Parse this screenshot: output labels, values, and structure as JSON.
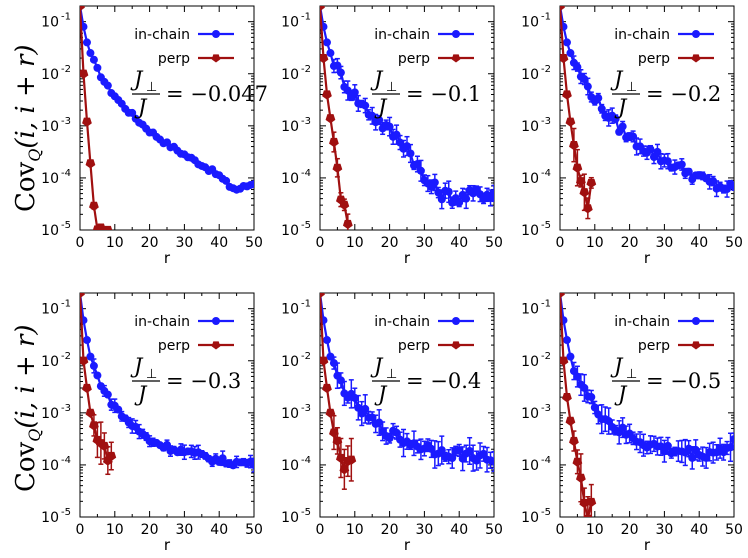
{
  "row_ylabel": "Cov",
  "row_ylabel_sub": "Q",
  "row_ylabel_args": "(i, i + r)",
  "chart_data": [
    {
      "panel": 1,
      "type": "line",
      "xlabel": "r",
      "yscale": "log",
      "xlim": [
        0,
        50
      ],
      "ylim": [
        1e-05,
        0.2
      ],
      "xticks": [
        "0",
        "10",
        "20",
        "30",
        "40",
        "50"
      ],
      "ytick_mantissa": [
        "10",
        "10",
        "10",
        "10",
        "10"
      ],
      "ytick_exponent": [
        "-1",
        "-2",
        "-3",
        "-4",
        "-5"
      ],
      "annotation": {
        "lhs_num": "J",
        "lhs_num_sub": "⊥",
        "lhs_den": "J",
        "rhs": "= −0.047",
        "ratio": -0.047
      },
      "series": [
        {
          "name": "in-chain",
          "color": "#1a1aff",
          "anchors": [
            [
              0,
              0.2
            ],
            [
              1,
              0.08
            ],
            [
              2,
              0.04
            ],
            [
              3,
              0.025
            ],
            [
              5,
              0.012
            ],
            [
              8,
              0.0055
            ],
            [
              12,
              0.0026
            ],
            [
              16,
              0.0014
            ],
            [
              20,
              0.0008
            ],
            [
              25,
              0.00045
            ],
            [
              30,
              0.00028
            ],
            [
              35,
              0.00018
            ],
            [
              40,
              0.00011
            ],
            [
              43,
              7e-05
            ],
            [
              45,
              6e-05
            ],
            [
              48,
              7e-05
            ],
            [
              50,
              8e-05
            ]
          ],
          "noise": 0.04,
          "err": 0.03
        },
        {
          "name": "perp",
          "color": "#a01010",
          "anchors": [
            [
              0,
              0.2
            ],
            [
              1,
              0.01
            ],
            [
              2,
              0.0012
            ],
            [
              3,
              0.00019
            ],
            [
              4,
              3e-05
            ],
            [
              5,
              1e-05
            ],
            [
              6,
              1.1e-05
            ],
            [
              7,
              9.5e-06
            ],
            [
              8,
              1e-05
            ]
          ],
          "noise": 0.02,
          "err": 0.06
        }
      ]
    },
    {
      "panel": 2,
      "type": "line",
      "xlabel": "r",
      "yscale": "log",
      "xlim": [
        0,
        50
      ],
      "ylim": [
        1e-05,
        0.2
      ],
      "xticks": [
        "0",
        "10",
        "20",
        "30",
        "40",
        "50"
      ],
      "ytick_mantissa": [
        "10",
        "10",
        "10",
        "10",
        "10"
      ],
      "ytick_exponent": [
        "-1",
        "-2",
        "-3",
        "-4",
        "-5"
      ],
      "annotation": {
        "lhs_num": "J",
        "lhs_num_sub": "⊥",
        "lhs_den": "J",
        "rhs": "= −0.1",
        "ratio": -0.1
      },
      "series": [
        {
          "name": "in-chain",
          "color": "#1a1aff",
          "anchors": [
            [
              0,
              0.2
            ],
            [
              1,
              0.08
            ],
            [
              2,
              0.04
            ],
            [
              3,
              0.025
            ],
            [
              5,
              0.012
            ],
            [
              8,
              0.0055
            ],
            [
              12,
              0.0026
            ],
            [
              16,
              0.0014
            ],
            [
              20,
              0.0008
            ],
            [
              25,
              0.0004
            ],
            [
              28,
              0.00017
            ],
            [
              30,
              9e-05
            ],
            [
              35,
              5e-05
            ],
            [
              40,
              4e-05
            ],
            [
              45,
              5e-05
            ],
            [
              50,
              5e-05
            ]
          ],
          "noise": 0.12,
          "err": 0.15
        },
        {
          "name": "perp",
          "color": "#a01010",
          "anchors": [
            [
              0,
              0.2
            ],
            [
              1,
              0.02
            ],
            [
              2,
              0.004
            ],
            [
              3,
              0.0014
            ],
            [
              4,
              0.0005
            ],
            [
              5,
              0.00015
            ],
            [
              6,
              4e-05
            ],
            [
              7,
              3e-05
            ],
            [
              8,
              1.2e-05
            ]
          ],
          "noise": 0.05,
          "err": 0.2
        }
      ]
    },
    {
      "panel": 3,
      "type": "line",
      "xlabel": "r",
      "yscale": "log",
      "xlim": [
        0,
        50
      ],
      "ylim": [
        1e-05,
        0.2
      ],
      "xticks": [
        "0",
        "10",
        "20",
        "30",
        "40",
        "50"
      ],
      "ytick_mantissa": [
        "10",
        "10",
        "10",
        "10",
        "10"
      ],
      "ytick_exponent": [
        "-1",
        "-2",
        "-3",
        "-4",
        "-5"
      ],
      "annotation": {
        "lhs_num": "J",
        "lhs_num_sub": "⊥",
        "lhs_den": "J",
        "rhs": "= −0.2",
        "ratio": -0.2
      },
      "series": [
        {
          "name": "in-chain",
          "color": "#1a1aff",
          "anchors": [
            [
              0,
              0.2
            ],
            [
              1,
              0.08
            ],
            [
              2,
              0.04
            ],
            [
              3,
              0.025
            ],
            [
              5,
              0.012
            ],
            [
              8,
              0.0055
            ],
            [
              12,
              0.0022
            ],
            [
              16,
              0.0011
            ],
            [
              20,
              0.0006
            ],
            [
              25,
              0.00035
            ],
            [
              30,
              0.00022
            ],
            [
              35,
              0.00015
            ],
            [
              40,
              0.0001
            ],
            [
              45,
              7e-05
            ],
            [
              50,
              6e-05
            ]
          ],
          "noise": 0.1,
          "err": 0.12
        },
        {
          "name": "perp",
          "color": "#a01010",
          "anchors": [
            [
              0,
              0.2
            ],
            [
              1,
              0.02
            ],
            [
              2,
              0.004
            ],
            [
              3,
              0.0012
            ],
            [
              4,
              0.0004
            ],
            [
              5,
              0.00015
            ],
            [
              6,
              7e-05
            ],
            [
              7,
              6e-05
            ],
            [
              8,
              3e-05
            ],
            [
              9,
              8e-05
            ]
          ],
          "noise": 0.1,
          "err": 0.25
        }
      ]
    },
    {
      "panel": 4,
      "type": "line",
      "xlabel": "r",
      "yscale": "log",
      "xlim": [
        0,
        50
      ],
      "ylim": [
        1e-05,
        0.2
      ],
      "xticks": [
        "0",
        "10",
        "20",
        "30",
        "40",
        "50"
      ],
      "ytick_mantissa": [
        "10",
        "10",
        "10",
        "10",
        "10"
      ],
      "ytick_exponent": [
        "-1",
        "-2",
        "-3",
        "-4",
        "-5"
      ],
      "annotation": {
        "lhs_num": "J",
        "lhs_num_sub": "⊥",
        "lhs_den": "J",
        "rhs": "= −0.3",
        "ratio": -0.3
      },
      "series": [
        {
          "name": "in-chain",
          "color": "#1a1aff",
          "anchors": [
            [
              0,
              0.2
            ],
            [
              1,
              0.06
            ],
            [
              2,
              0.025
            ],
            [
              3,
              0.012
            ],
            [
              5,
              0.005
            ],
            [
              8,
              0.002
            ],
            [
              12,
              0.0009
            ],
            [
              16,
              0.0005
            ],
            [
              20,
              0.0003
            ],
            [
              25,
              0.00022
            ],
            [
              30,
              0.00018
            ],
            [
              35,
              0.00015
            ],
            [
              40,
              0.00012
            ],
            [
              45,
              0.00011
            ],
            [
              50,
              0.00011
            ]
          ],
          "noise": 0.06,
          "err": 0.1
        },
        {
          "name": "perp",
          "color": "#a01010",
          "anchors": [
            [
              0,
              0.2
            ],
            [
              1,
              0.01
            ],
            [
              2,
              0.003
            ],
            [
              3,
              0.001
            ],
            [
              4,
              0.0005
            ],
            [
              5,
              0.0003
            ],
            [
              6,
              0.00025
            ],
            [
              7,
              0.0002
            ],
            [
              8,
              0.00012
            ],
            [
              9,
              0.00015
            ]
          ],
          "noise": 0.08,
          "err": 0.3
        }
      ]
    },
    {
      "panel": 5,
      "type": "line",
      "xlabel": "r",
      "yscale": "log",
      "xlim": [
        0,
        50
      ],
      "ylim": [
        1e-05,
        0.2
      ],
      "xticks": [
        "0",
        "10",
        "20",
        "30",
        "40",
        "50"
      ],
      "ytick_mantissa": [
        "10",
        "10",
        "10",
        "10",
        "10"
      ],
      "ytick_exponent": [
        "-1",
        "-2",
        "-3",
        "-4",
        "-5"
      ],
      "annotation": {
        "lhs_num": "J",
        "lhs_num_sub": "⊥",
        "lhs_den": "J",
        "rhs": "= −0.4",
        "ratio": -0.4
      },
      "series": [
        {
          "name": "in-chain",
          "color": "#1a1aff",
          "anchors": [
            [
              0,
              0.2
            ],
            [
              1,
              0.06
            ],
            [
              2,
              0.025
            ],
            [
              3,
              0.012
            ],
            [
              5,
              0.005
            ],
            [
              8,
              0.0022
            ],
            [
              12,
              0.0011
            ],
            [
              16,
              0.0006
            ],
            [
              20,
              0.0004
            ],
            [
              25,
              0.00028
            ],
            [
              30,
              0.00022
            ],
            [
              35,
              0.00018
            ],
            [
              40,
              0.00016
            ],
            [
              45,
              0.00015
            ],
            [
              50,
              0.00012
            ]
          ],
          "noise": 0.1,
          "err": 0.2
        },
        {
          "name": "perp",
          "color": "#a01010",
          "anchors": [
            [
              0,
              0.2
            ],
            [
              1,
              0.01
            ],
            [
              2,
              0.003
            ],
            [
              3,
              0.001
            ],
            [
              4,
              0.0005
            ],
            [
              5,
              0.0003
            ],
            [
              6,
              0.00015
            ],
            [
              7,
              8e-05
            ],
            [
              8,
              0.0001
            ],
            [
              9,
              0.00013
            ]
          ],
          "noise": 0.1,
          "err": 0.3
        }
      ]
    },
    {
      "panel": 6,
      "type": "line",
      "xlabel": "r",
      "yscale": "log",
      "xlim": [
        0,
        50
      ],
      "ylim": [
        1e-05,
        0.2
      ],
      "xticks": [
        "0",
        "10",
        "20",
        "30",
        "40",
        "50"
      ],
      "ytick_mantissa": [
        "10",
        "10",
        "10",
        "10",
        "10"
      ],
      "ytick_exponent": [
        "-1",
        "-2",
        "-3",
        "-4",
        "-5"
      ],
      "annotation": {
        "lhs_num": "J",
        "lhs_num_sub": "⊥",
        "lhs_den": "J",
        "rhs": "= −0.5",
        "ratio": -0.5
      },
      "series": [
        {
          "name": "in-chain",
          "color": "#1a1aff",
          "anchors": [
            [
              0,
              0.2
            ],
            [
              1,
              0.06
            ],
            [
              2,
              0.025
            ],
            [
              3,
              0.012
            ],
            [
              5,
              0.005
            ],
            [
              8,
              0.002
            ],
            [
              12,
              0.0009
            ],
            [
              16,
              0.0005
            ],
            [
              20,
              0.00035
            ],
            [
              25,
              0.00025
            ],
            [
              30,
              0.0002
            ],
            [
              35,
              0.00018
            ],
            [
              40,
              0.00016
            ],
            [
              45,
              0.00018
            ],
            [
              48,
              0.00022
            ],
            [
              50,
              0.00028
            ]
          ],
          "noise": 0.1,
          "err": 0.2
        },
        {
          "name": "perp",
          "color": "#a01010",
          "anchors": [
            [
              0,
              0.2
            ],
            [
              1,
              0.01
            ],
            [
              2,
              0.002
            ],
            [
              3,
              0.0007
            ],
            [
              4,
              0.0003
            ],
            [
              5,
              0.00012
            ],
            [
              6,
              5e-05
            ],
            [
              7,
              2e-05
            ],
            [
              8,
              1e-05
            ],
            [
              9,
              2e-05
            ]
          ],
          "noise": 0.06,
          "err": 0.4
        }
      ]
    }
  ]
}
